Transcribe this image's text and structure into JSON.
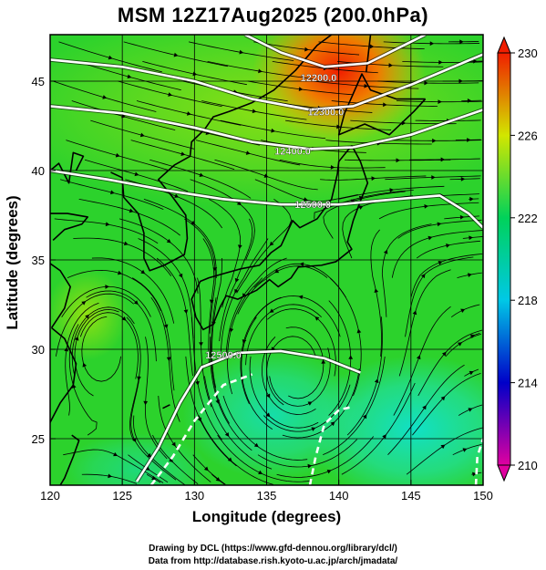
{
  "header": {
    "title": "MSM 12Z17Aug2025 (200.0hPa)"
  },
  "footer": {
    "credit_line1": "Drawing by DCL (https://www.gfd-dennou.org/library/dcl/)",
    "credit_line2": "Data from http://database.rish.kyoto-u.ac.jp/arch/jmadata/"
  },
  "chart_data": {
    "type": "heatmap",
    "title": "MSM 12Z17Aug2025 (200.0hPa)",
    "xlabel": "Longitude (degrees)",
    "ylabel": "Latitude  (degrees)",
    "xlim": [
      120,
      150
    ],
    "ylim": [
      22.4,
      47.6
    ],
    "x_ticks": [
      120,
      125,
      130,
      135,
      140,
      145,
      150
    ],
    "y_ticks": [
      25,
      30,
      35,
      40,
      45
    ],
    "grid": true,
    "colorbar": {
      "min": 210,
      "max": 230,
      "ticks": [
        210,
        214,
        218,
        222,
        226,
        230
      ],
      "extend": "both",
      "colors": [
        "#e000a0",
        "#0000c8",
        "#00c8e6",
        "#00d25a",
        "#d2e600",
        "#f01e00"
      ]
    },
    "contour_labels": [
      {
        "text": "12200.0",
        "lon": 138.6,
        "lat": 45.2
      },
      {
        "text": "12300.0",
        "lon": 139.1,
        "lat": 43.3
      },
      {
        "text": "12400.0",
        "lon": 136.8,
        "lat": 41.1
      },
      {
        "text": "12500.0",
        "lon": 138.2,
        "lat": 38.1
      },
      {
        "text": "12500.0",
        "lon": 132.0,
        "lat": 29.7
      }
    ],
    "contours": [
      {
        "level": 12200,
        "points": [
          [
            133.5,
            47.6
          ],
          [
            136,
            46.6
          ],
          [
            139,
            45.8
          ],
          [
            142,
            46.0
          ],
          [
            145,
            47.2
          ],
          [
            146,
            47.6
          ]
        ]
      },
      {
        "level": 12300,
        "points": [
          [
            120,
            46.2
          ],
          [
            125,
            45.8
          ],
          [
            130,
            45.0
          ],
          [
            134,
            44.0
          ],
          [
            138,
            43.4
          ],
          [
            141,
            43.6
          ],
          [
            145,
            44.8
          ],
          [
            150,
            46.5
          ]
        ]
      },
      {
        "level": 12400,
        "points": [
          [
            120,
            43.6
          ],
          [
            125,
            43.2
          ],
          [
            130,
            42.4
          ],
          [
            134,
            41.6
          ],
          [
            138,
            41.2
          ],
          [
            141,
            41.3
          ],
          [
            145,
            42.0
          ],
          [
            150,
            43.4
          ]
        ]
      },
      {
        "level": 12500,
        "points": [
          [
            120,
            40.0
          ],
          [
            124,
            39.5
          ],
          [
            128,
            38.9
          ],
          [
            132,
            38.4
          ],
          [
            136,
            38.1
          ],
          [
            140,
            38.1
          ],
          [
            144,
            38.4
          ],
          [
            147,
            38.6
          ],
          [
            149,
            37.6
          ],
          [
            150,
            36.8
          ]
        ]
      },
      {
        "level": 12500,
        "points": [
          [
            126,
            22.6
          ],
          [
            127.5,
            24.5
          ],
          [
            129,
            27.0
          ],
          [
            130.5,
            29.0
          ],
          [
            133,
            29.8
          ],
          [
            136,
            29.9
          ],
          [
            139,
            29.5
          ],
          [
            141.5,
            28.7
          ]
        ]
      }
    ],
    "dashed_contours": [
      {
        "points": [
          [
            127,
            22.4
          ],
          [
            128.5,
            24.0
          ],
          [
            130,
            26.0
          ],
          [
            132,
            28.0
          ],
          [
            134,
            28.6
          ]
        ]
      },
      {
        "points": [
          [
            138,
            22.4
          ],
          [
            138.4,
            24.0
          ],
          [
            139,
            25.8
          ],
          [
            140,
            26.6
          ],
          [
            141,
            26.8
          ]
        ]
      },
      {
        "points": [
          [
            149.5,
            22.4
          ],
          [
            149.6,
            24.0
          ],
          [
            150,
            25.0
          ]
        ]
      }
    ]
  }
}
